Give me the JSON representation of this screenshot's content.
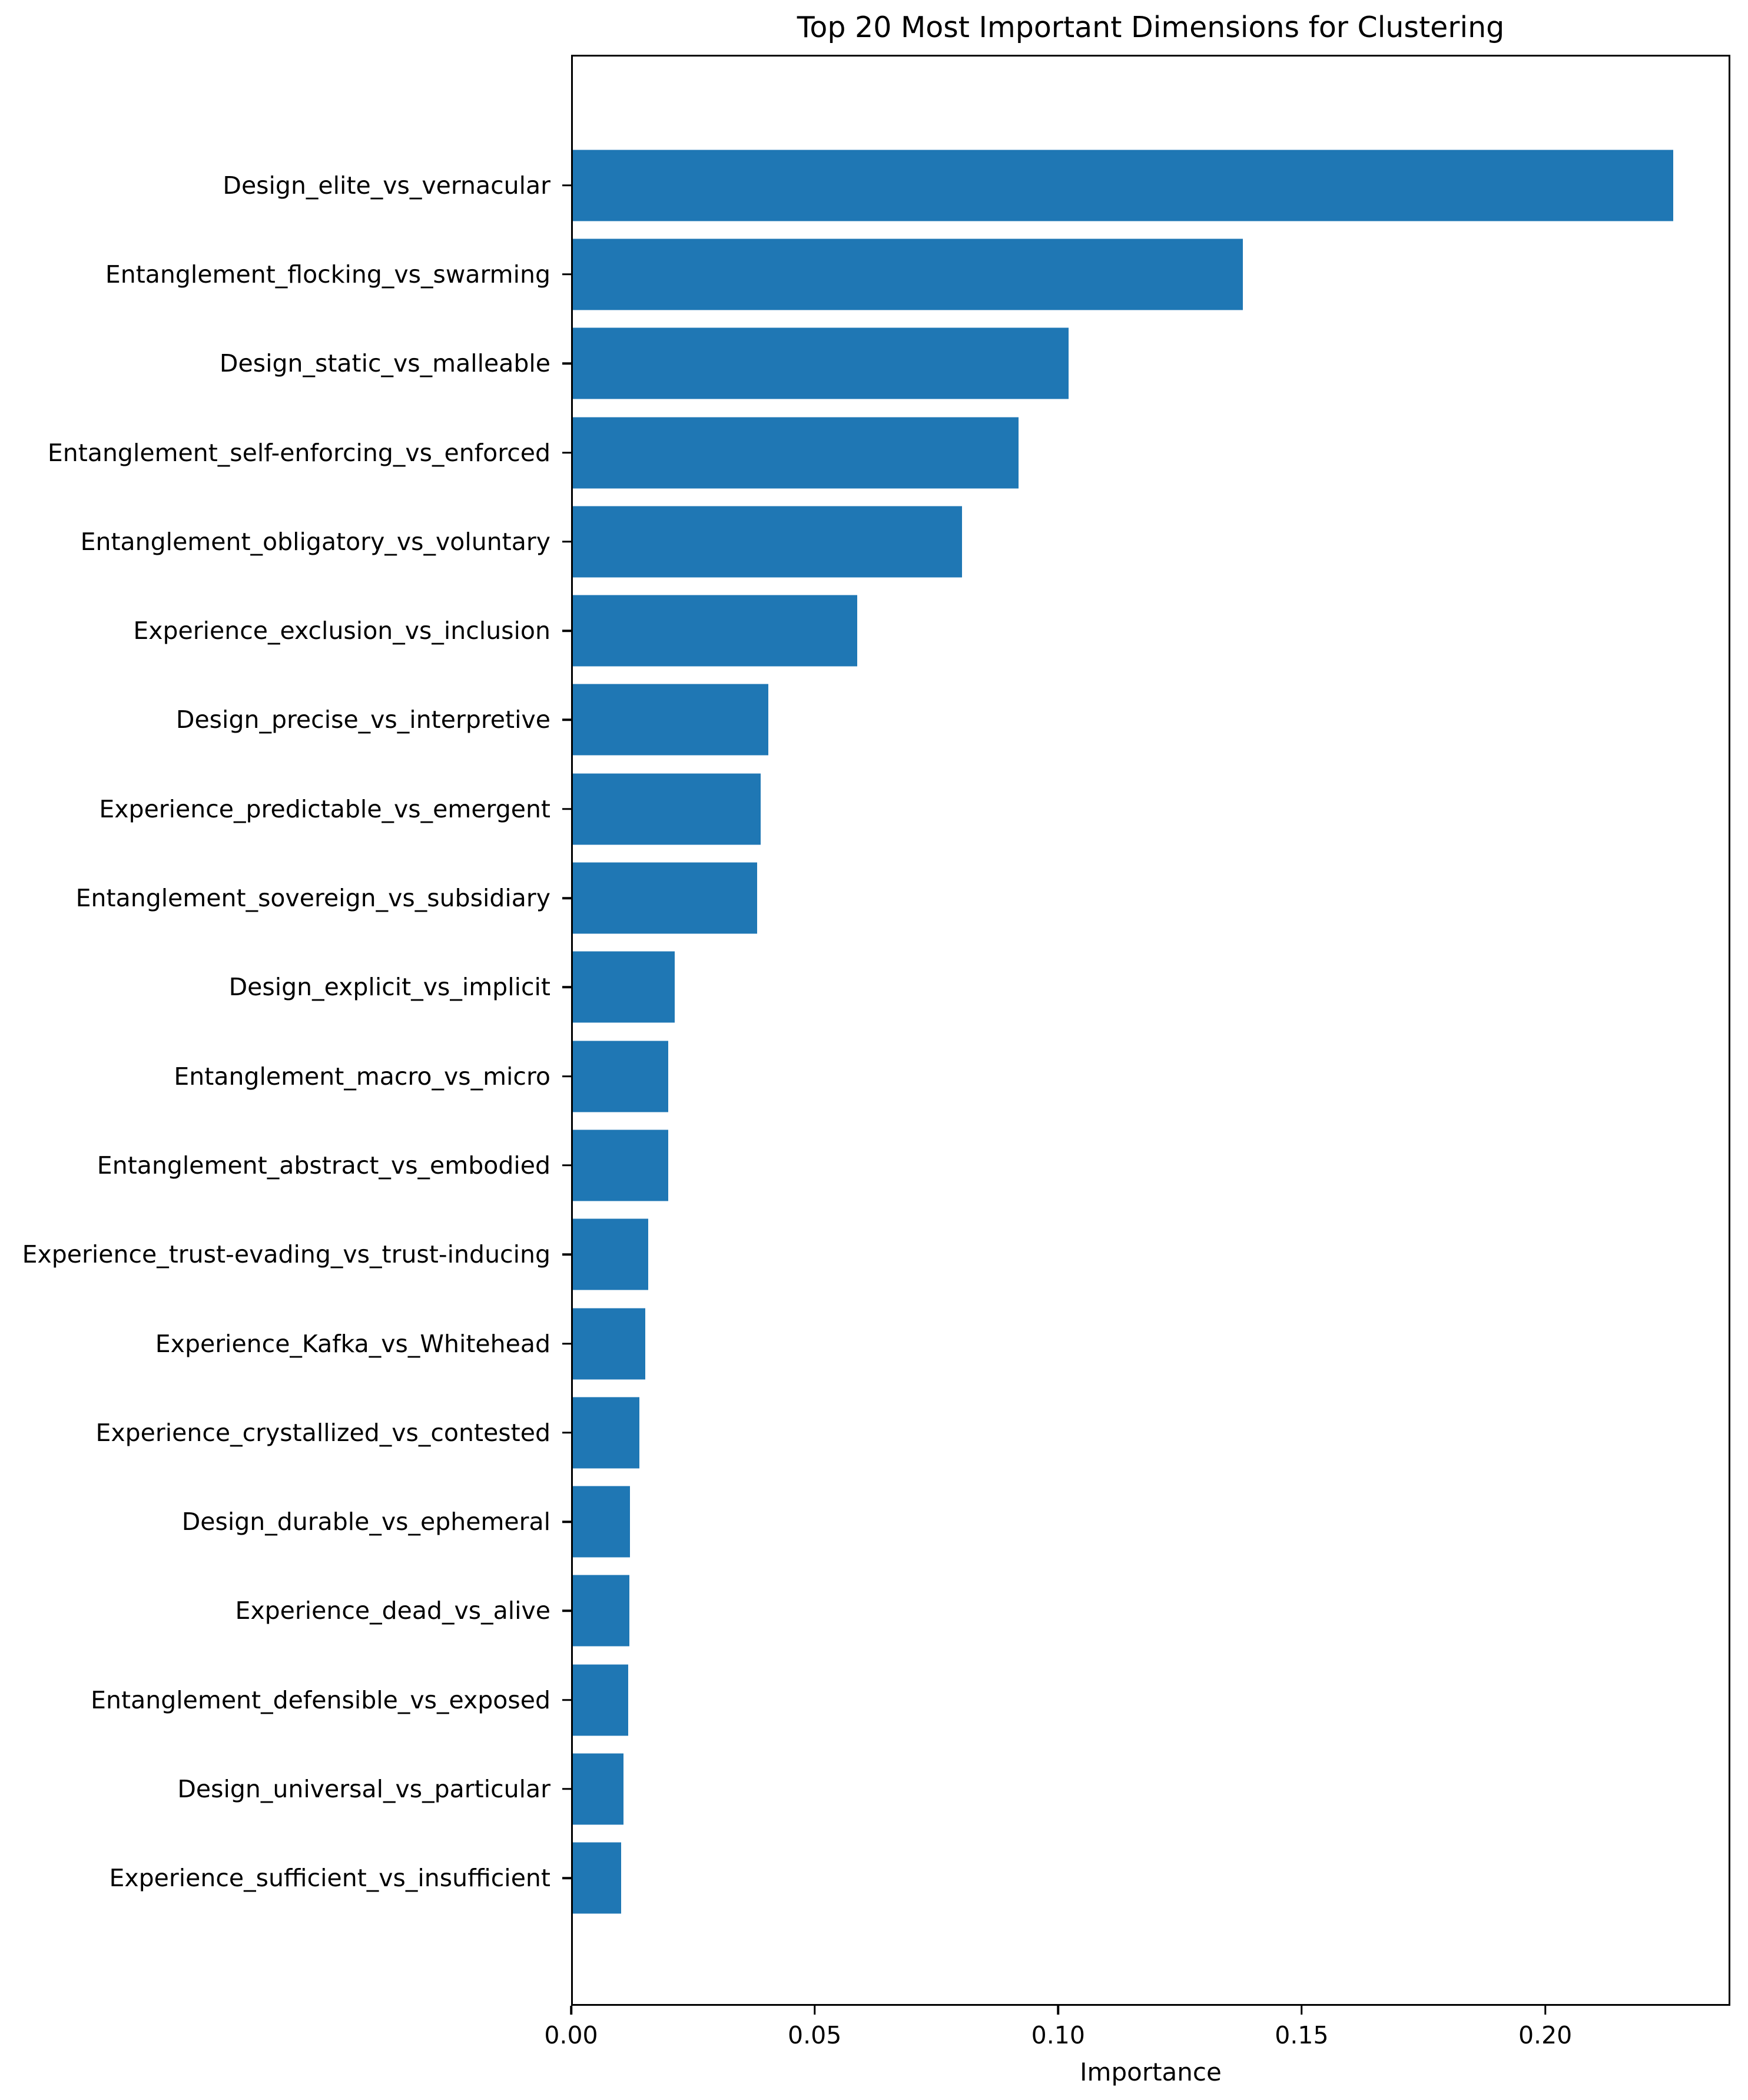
{
  "figure": {
    "title": "Top 20 Most Important Dimensions for Clustering",
    "xlabel": "Importance"
  },
  "chart_data": {
    "type": "bar",
    "orientation": "horizontal",
    "title": "Top 20 Most Important Dimensions for Clustering",
    "xlabel": "Importance",
    "ylabel": "",
    "legend": null,
    "grid": false,
    "bar_color": "#1f77b4",
    "frame_color": "#000000",
    "background_color": "#ffffff",
    "xlim": [
      0,
      0.238
    ],
    "xticks": [
      0.0,
      0.05,
      0.1,
      0.15,
      0.2
    ],
    "xtick_labels": [
      "0.00",
      "0.05",
      "0.10",
      "0.15",
      "0.20"
    ],
    "categories": [
      "Design_elite_vs_vernacular",
      "Entanglement_flocking_vs_swarming",
      "Design_static_vs_malleable",
      "Entanglement_self-enforcing_vs_enforced",
      "Entanglement_obligatory_vs_voluntary",
      "Experience_exclusion_vs_inclusion",
      "Design_precise_vs_interpretive",
      "Experience_predictable_vs_emergent",
      "Entanglement_sovereign_vs_subsidiary",
      "Design_explicit_vs_implicit",
      "Entanglement_macro_vs_micro",
      "Entanglement_abstract_vs_embodied",
      "Experience_trust-evading_vs_trust-inducing",
      "Experience_Kafka_vs_Whitehead",
      "Experience_crystallized_vs_contested",
      "Design_durable_vs_ephemeral",
      "Experience_dead_vs_alive",
      "Entanglement_defensible_vs_exposed",
      "Design_universal_vs_particular",
      "Experience_sufficient_vs_insufficient"
    ],
    "values": [
      0.2266,
      0.138,
      0.1021,
      0.0918,
      0.0801,
      0.0586,
      0.0402,
      0.0387,
      0.038,
      0.021,
      0.0197,
      0.0197,
      0.0155,
      0.0149,
      0.0137,
      0.0118,
      0.0116,
      0.0114,
      0.0104,
      0.0099
    ]
  }
}
